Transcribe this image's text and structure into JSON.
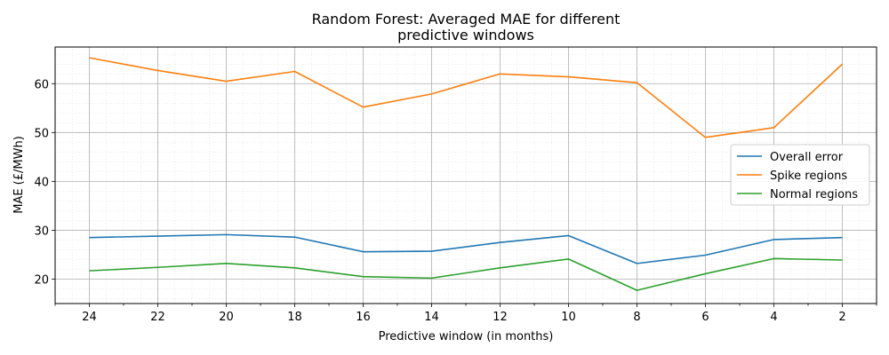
{
  "chart_data": {
    "type": "line",
    "title": [
      "Random Forest: Averaged MAE for different",
      "predictive windows"
    ],
    "xlabel": "Predictive window (in months)",
    "ylabel": "MAE (£/MWh)",
    "x": [
      24,
      22,
      20,
      18,
      16,
      14,
      12,
      10,
      8,
      6,
      4,
      2
    ],
    "x_reversed": true,
    "xlim": [
      25,
      1
    ],
    "ylim": [
      15,
      67.5
    ],
    "xticks": [
      "24",
      "22",
      "20",
      "18",
      "16",
      "14",
      "12",
      "10",
      "8",
      "6",
      "4",
      "2"
    ],
    "yticks": [
      "20",
      "30",
      "40",
      "50",
      "60"
    ],
    "grid": true,
    "minor_grid": true,
    "legend_position": "center-right",
    "series": [
      {
        "name": "Overall error",
        "color": "#1f77b4",
        "values": [
          28.5,
          28.8,
          29.1,
          28.6,
          25.6,
          25.7,
          27.5,
          28.9,
          23.2,
          24.9,
          28.1,
          28.5
        ]
      },
      {
        "name": "Spike regions",
        "color": "#ff7f0e",
        "values": [
          65.3,
          62.7,
          60.5,
          62.5,
          55.2,
          57.9,
          62.0,
          61.4,
          60.2,
          49.0,
          51.0,
          64.0
        ]
      },
      {
        "name": "Normal regions",
        "color": "#2ca02c",
        "values": [
          21.7,
          22.4,
          23.2,
          22.3,
          20.5,
          20.2,
          22.3,
          24.1,
          17.7,
          21.1,
          24.2,
          23.9
        ]
      }
    ]
  }
}
